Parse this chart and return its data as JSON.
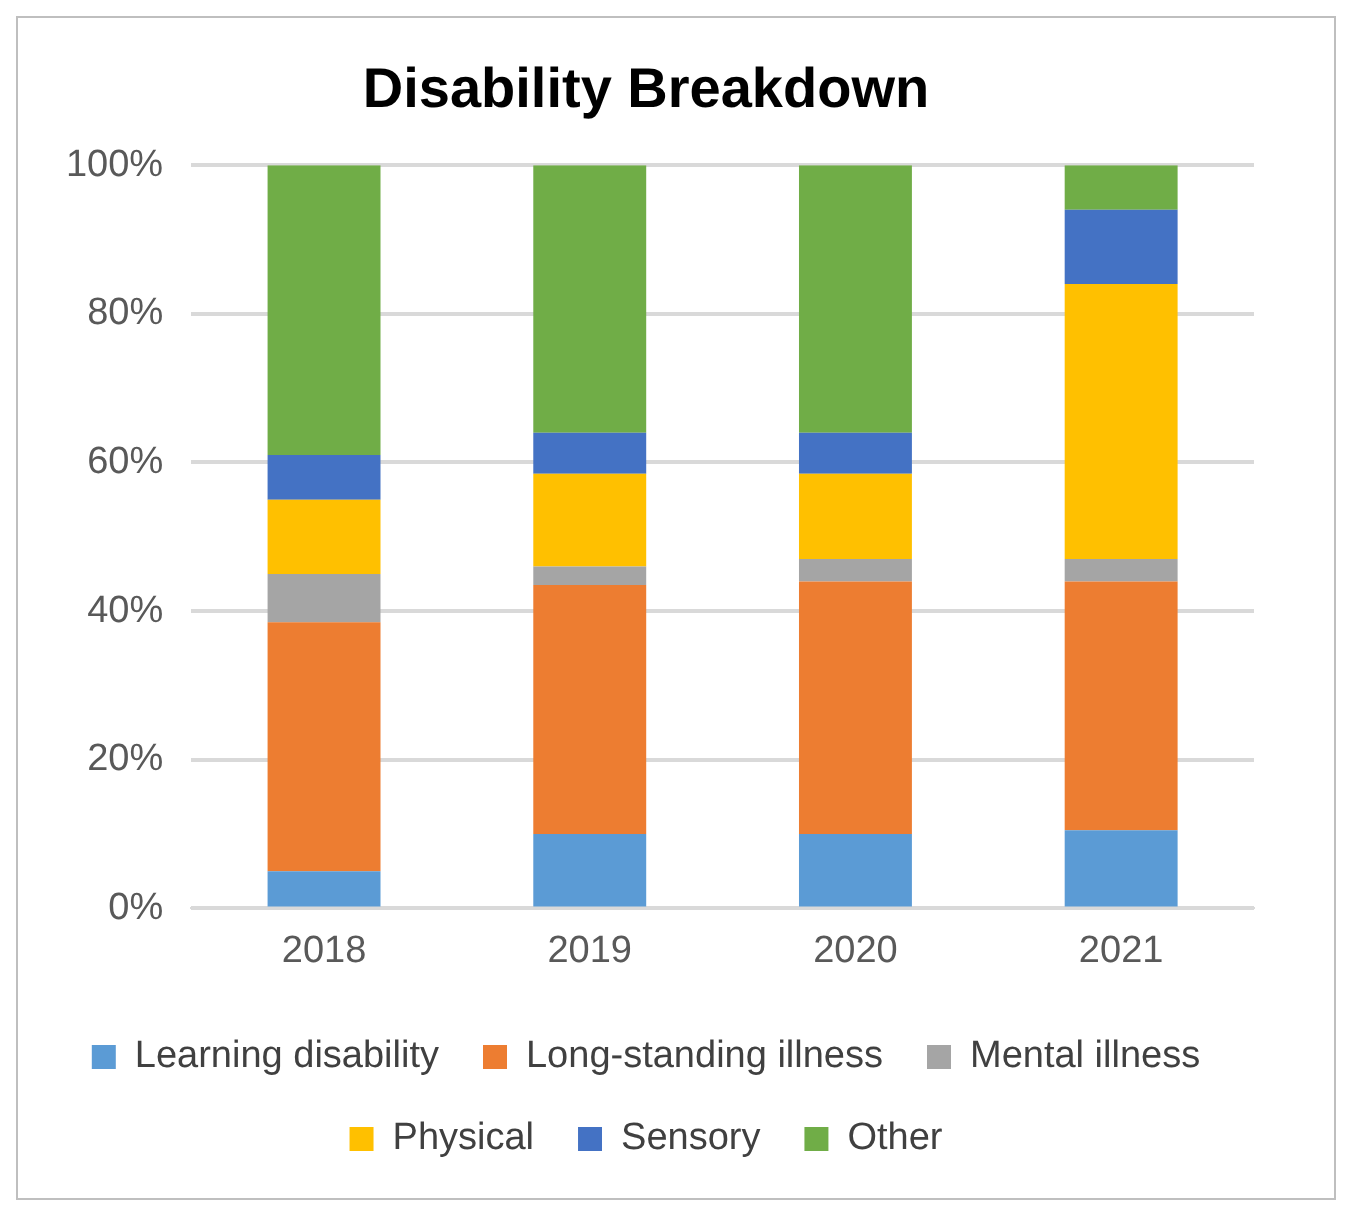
{
  "chart_data": {
    "type": "bar",
    "title": "Disability Breakdown",
    "stacked": true,
    "categories": [
      "2018",
      "2019",
      "2020",
      "2021"
    ],
    "series": [
      {
        "name": "Learning disability",
        "color": "#5b9bd5",
        "values": [
          5,
          10,
          10,
          10.5
        ]
      },
      {
        "name": "Long-standing illness",
        "color": "#ed7d31",
        "values": [
          33.5,
          33.5,
          34,
          33.5
        ]
      },
      {
        "name": "Mental illness",
        "color": "#a5a5a5",
        "values": [
          6.5,
          2.5,
          3,
          3
        ]
      },
      {
        "name": "Physical",
        "color": "#ffc000",
        "values": [
          10,
          12.5,
          11.5,
          37
        ]
      },
      {
        "name": "Sensory",
        "color": "#4472c4",
        "values": [
          6,
          5.5,
          5.5,
          10
        ]
      },
      {
        "name": "Other",
        "color": "#70ad47",
        "values": [
          39,
          36,
          36,
          6
        ]
      }
    ],
    "ylim": [
      0,
      100
    ],
    "yticks": [
      {
        "value": 0,
        "label": "0%"
      },
      {
        "value": 20,
        "label": "20%"
      },
      {
        "value": 40,
        "label": "40%"
      },
      {
        "value": 60,
        "label": "60%"
      },
      {
        "value": 80,
        "label": "80%"
      },
      {
        "value": 100,
        "label": "100%"
      }
    ],
    "grid": "y",
    "legend": "bottom"
  }
}
